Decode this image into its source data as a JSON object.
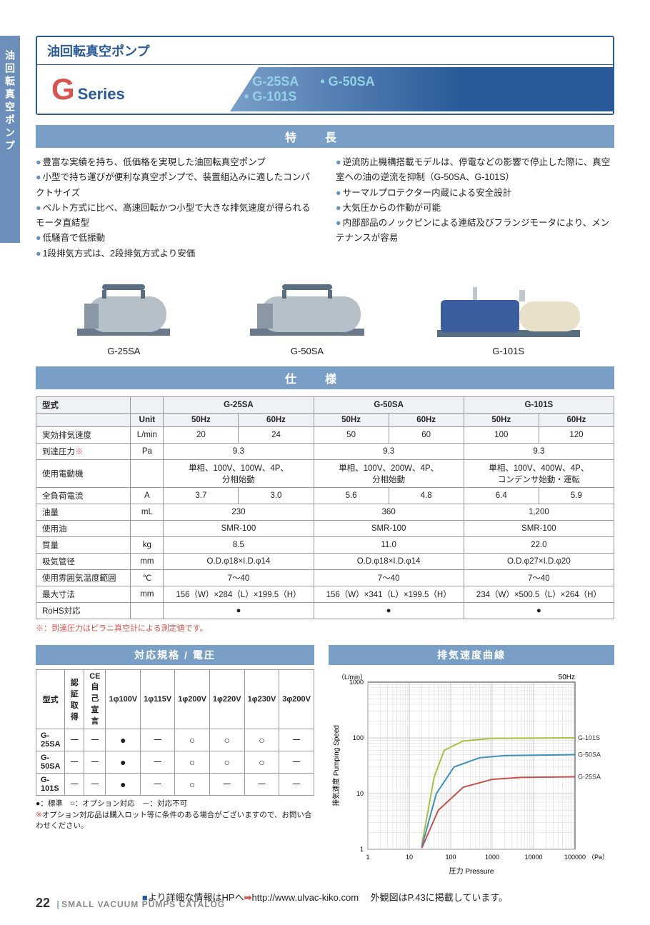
{
  "side_tab": "油回転真空ポンプ",
  "header": {
    "category": "油回転真空ポンプ",
    "series_g": "G",
    "series_label": "Series",
    "models": [
      "G-25SA",
      "G-50SA",
      "G-101S"
    ]
  },
  "sec_features": "特長",
  "features_left": [
    "豊富な実績を持ち、低価格を実現した油回転真空ポンプ",
    "小型で持ち運びが便利な真空ポンプで、装置組込みに適したコンパクトサイズ",
    "ベルト方式に比べ、高速回転かつ小型で大きな排気速度が得られるモータ直結型",
    "低騒音で低振動",
    "1段排気方式は、2段排気方式より安価"
  ],
  "features_right": [
    "逆流防止機構搭載モデルは、停電などの影響で停止した際に、真空室への油の逆流を抑制（G-50SA、G-101S）",
    "サーマルプロテクター内蔵による安全設計",
    "大気圧からの作動が可能",
    "内部部品のノックピンによる連結及びフランジモータにより、メンテナンスが容易"
  ],
  "product_labels": [
    "G-25SA",
    "G-50SA",
    "G-101S"
  ],
  "sec_spec": "仕様",
  "spec": {
    "head": {
      "model": "型式",
      "unit": "Unit",
      "models": [
        "G-25SA",
        "G-50SA",
        "G-101S"
      ],
      "hz": [
        "50Hz",
        "60Hz"
      ]
    },
    "rows": [
      {
        "label": "実効排気速度",
        "unit": "L/min",
        "v": [
          "20",
          "24",
          "50",
          "60",
          "100",
          "120"
        ]
      },
      {
        "label": "到達圧力<span class='red-star'>※</span>",
        "unit": "Pa",
        "span3": [
          "9.3",
          "9.3",
          "9.3"
        ]
      },
      {
        "label": "使用電動機",
        "unit": "",
        "span3": [
          "単相、100V、100W、4P、<br>分相始動",
          "単相、100V、200W、4P、<br>分相始動",
          "単相、100V、400W、4P、<br>コンデンサ始動・運転"
        ]
      },
      {
        "label": "全負荷電流",
        "unit": "A",
        "v": [
          "3.7",
          "3.0",
          "5.6",
          "4.8",
          "6.4",
          "5.9"
        ]
      },
      {
        "label": "油量",
        "unit": "mL",
        "span3": [
          "230",
          "360",
          "1,200"
        ]
      },
      {
        "label": "使用油",
        "unit": "",
        "span3": [
          "SMR-100",
          "SMR-100",
          "SMR-100"
        ]
      },
      {
        "label": "質量",
        "unit": "kg",
        "span3": [
          "8.5",
          "11.0",
          "22.0"
        ]
      },
      {
        "label": "吸気管径",
        "unit": "mm",
        "span3": [
          "O.D.φ18×I.D.φ14",
          "O.D.φ18×I.D.φ14",
          "O.D.φ27×I.D.φ20"
        ]
      },
      {
        "label": "使用雰囲気温度範囲",
        "unit": "℃",
        "span3": [
          "7～40",
          "7～40",
          "7～40"
        ]
      },
      {
        "label": "最大寸法",
        "unit": "mm",
        "span3": [
          "156（W）×284（L）×199.5（H）",
          "156（W）×341（L）×199.5（H）",
          "234（W）×500.5（L）×264（H）"
        ]
      },
      {
        "label": "RoHS対応",
        "unit": "",
        "span3": [
          "●",
          "●",
          "●"
        ]
      }
    ],
    "footnote": "※：到達圧力はピラニ真空計による測定値です。"
  },
  "std": {
    "title": "対応規格 / 電圧",
    "head": [
      "型式",
      "認証取得",
      "CE自己宣言",
      "1φ100V",
      "1φ115V",
      "1φ200V",
      "1φ220V",
      "1φ230V",
      "3φ200V"
    ],
    "rows": [
      [
        "G-25SA",
        "－",
        "－",
        "●",
        "－",
        "○",
        "○",
        "○",
        "－"
      ],
      [
        "G-50SA",
        "－",
        "－",
        "●",
        "－",
        "○",
        "○",
        "○",
        "－"
      ],
      [
        "G-101S",
        "－",
        "－",
        "●",
        "－",
        "○",
        "－",
        "－",
        "－"
      ]
    ],
    "legend": "●：標準　○：オプション対応　－：対応不可",
    "legend_note": "オプション対応品は購入ロット等に条件のある場合がございますので、お問い合わせください。"
  },
  "chart": {
    "title": "排気速度曲線",
    "freq": "50Hz",
    "y_label": "排気速度 Pumping Speed",
    "y_unit": "（L/min）",
    "x_label": "圧力 Pressure",
    "x_unit": "（Pa）",
    "x_ticks": [
      1,
      10,
      100,
      1000,
      10000,
      100000
    ],
    "y_ticks": [
      1,
      10,
      100,
      1000
    ],
    "bg": "#ffffff",
    "frame": "#333333",
    "grid": "#bbbbbb",
    "series": [
      {
        "name": "G-101S",
        "color": "#a4c23f",
        "points": [
          [
            20,
            1.2
          ],
          [
            40,
            20
          ],
          [
            70,
            60
          ],
          [
            200,
            88
          ],
          [
            1000,
            98
          ],
          [
            100000,
            100
          ]
        ]
      },
      {
        "name": "G-50SA",
        "color": "#3d8fbf",
        "points": [
          [
            20,
            1.1
          ],
          [
            45,
            10
          ],
          [
            120,
            30
          ],
          [
            500,
            44
          ],
          [
            2000,
            48
          ],
          [
            100000,
            50
          ]
        ]
      },
      {
        "name": "G-25SA",
        "color": "#c9504a",
        "points": [
          [
            20,
            1.05
          ],
          [
            50,
            5
          ],
          [
            200,
            13
          ],
          [
            1000,
            18
          ],
          [
            5000,
            19.5
          ],
          [
            100000,
            20
          ]
        ]
      }
    ]
  },
  "bottom": {
    "more": "より詳細な情報はHPへ",
    "url": "http://www.ulvac-kiko.com",
    "note": "外観図はP.43に掲載しています。"
  },
  "footer": {
    "page": "22",
    "title": "SMALL VACUUM PUMPS CATALOG"
  }
}
